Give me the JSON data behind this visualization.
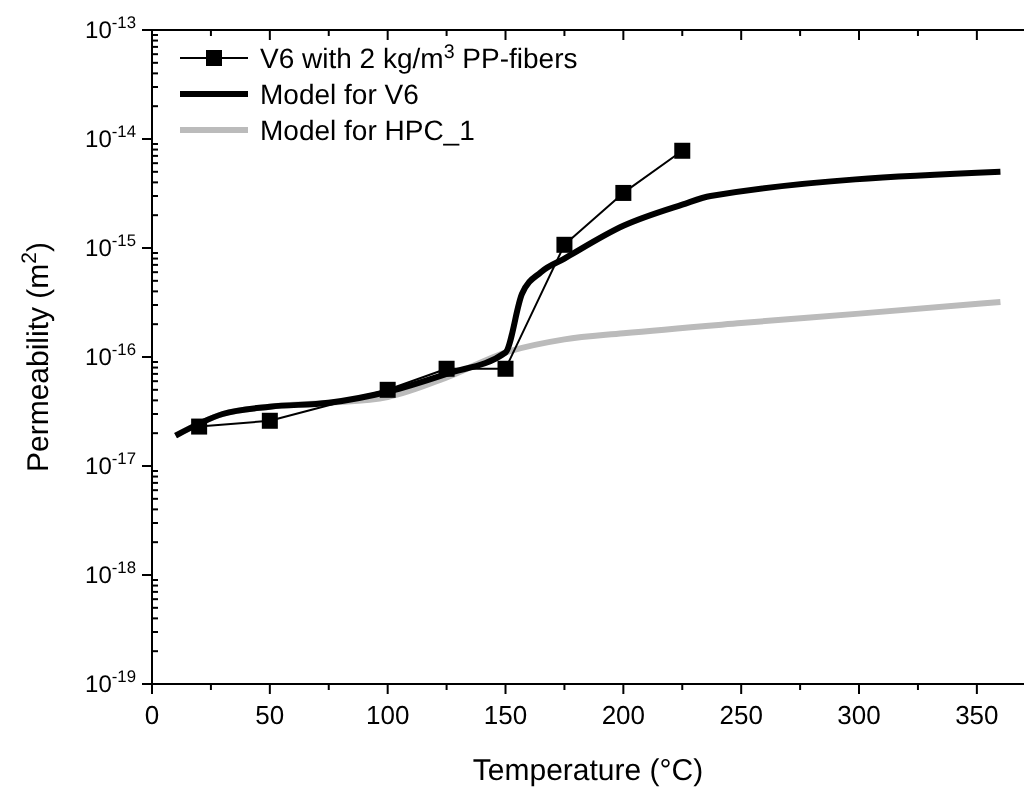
{
  "chart_data": {
    "type": "line",
    "xlabel": "Temperature (°C)",
    "ylabel": "Permeability (m$^{2}$)",
    "log": "y",
    "xlim": [
      0,
      370
    ],
    "ylim": [
      1e-19,
      1e-13
    ],
    "xticks": [
      0,
      {
        "value": 25,
        "label": null
      },
      50,
      {
        "value": 75,
        "label": null
      },
      100,
      {
        "value": 125,
        "label": null
      },
      150,
      {
        "value": 175,
        "label": null
      },
      200,
      {
        "value": 225,
        "label": null
      },
      250,
      {
        "value": 275,
        "label": null
      },
      300,
      {
        "value": 325,
        "label": null
      },
      350
    ],
    "yticks": [
      {
        "value": 1e-19,
        "label": "10$^{-19}$"
      },
      {
        "value": 1e-18,
        "label": "10$^{-18}$"
      },
      {
        "value": 1e-17,
        "label": "10$^{-17}$"
      },
      {
        "value": 1e-16,
        "label": "10$^{-16}$"
      },
      {
        "value": 1e-15,
        "label": "10$^{-15}$"
      },
      {
        "value": 1e-14,
        "label": "10$^{-14}$"
      },
      {
        "value": 1e-13,
        "label": "10$^{-13}$"
      }
    ],
    "grid": false,
    "legend": "top left",
    "series": [
      {
        "name": "V6 with 2 kg/m$^{3}$ PP-fibers",
        "color": "#000000",
        "marker": "square",
        "x": [
          20,
          50,
          100,
          125,
          150,
          175,
          200,
          225
        ],
        "values": [
          2.3e-17,
          2.6e-17,
          5e-17,
          7.8e-17,
          7.8e-17,
          1.07e-15,
          3.2e-15,
          7.8e-15
        ]
      },
      {
        "name": "Model for V6",
        "color": "#000000",
        "marker": "none",
        "x": [
          10,
          30,
          50,
          75,
          100,
          125,
          150,
          157,
          165,
          175,
          200,
          225,
          237,
          360
        ],
        "values": [
          1.9e-17,
          3e-17,
          3.5e-17,
          3.8e-17,
          4.8e-17,
          7e-17,
          1.1e-16,
          3.8e-16,
          6e-16,
          8e-16,
          1.6e-15,
          2.5e-15,
          3e-15,
          5e-15
        ]
      },
      {
        "name": "Model for HPC_1",
        "color": "#bbbbbb",
        "marker": "none",
        "x": [
          10,
          30,
          50,
          75,
          100,
          125,
          150,
          175,
          200,
          250,
          300,
          360
        ],
        "values": [
          1.9e-17,
          3e-17,
          3.5e-17,
          3.8e-17,
          4.3e-17,
          6.5e-17,
          1.1e-16,
          1.45e-16,
          1.65e-16,
          2.05e-16,
          2.5e-16,
          3.2e-16
        ]
      }
    ]
  }
}
